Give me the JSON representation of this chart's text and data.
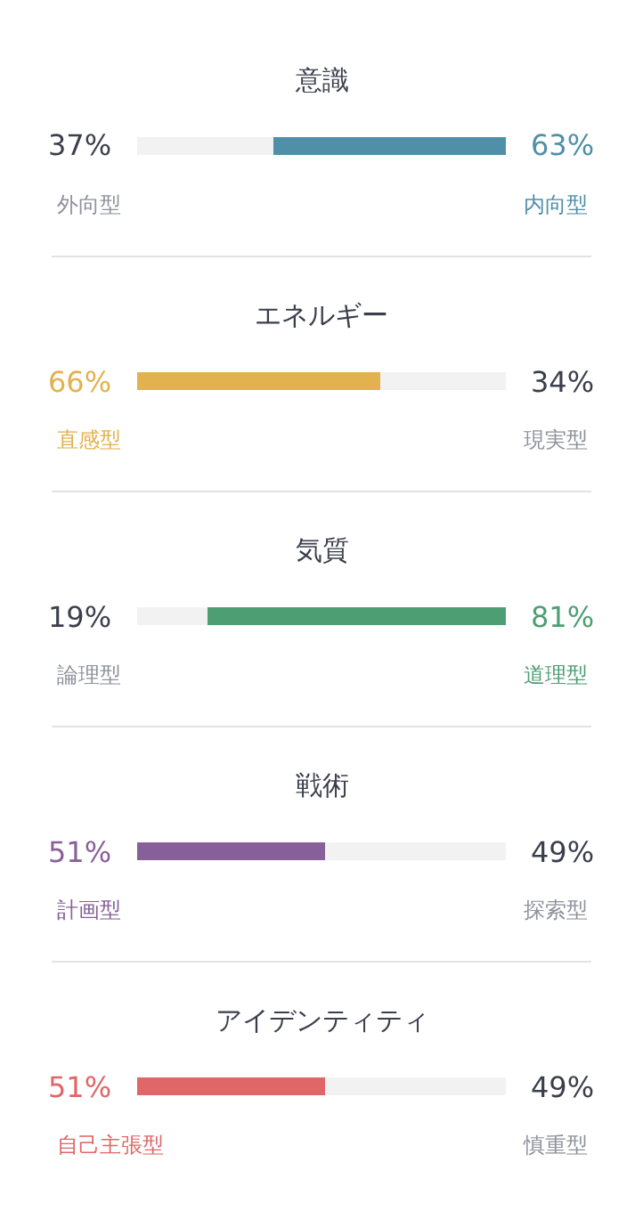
{
  "chart_data": [
    {
      "type": "bar",
      "orientation": "horizontal",
      "stacked": true,
      "title": "意識",
      "categories": [
        null
      ],
      "xlim": [
        0,
        100
      ],
      "tick_labels": false,
      "legend": false,
      "series": [
        {
          "name": "外向型",
          "color": "#f2f2f2",
          "values": [
            37
          ],
          "value_labels": [
            "37%"
          ]
        },
        {
          "name": "内向型",
          "color": "#4f8fa8",
          "values": [
            63
          ],
          "value_labels": [
            "63%"
          ]
        }
      ]
    },
    {
      "type": "bar",
      "orientation": "horizontal",
      "stacked": true,
      "title": "エネルギー",
      "categories": [
        null
      ],
      "xlim": [
        0,
        100
      ],
      "tick_labels": false,
      "legend": false,
      "series": [
        {
          "name": "直感型",
          "color": "#e1b24f",
          "values": [
            66
          ],
          "value_labels": [
            "66%"
          ]
        },
        {
          "name": "現実型",
          "color": "#f2f2f2",
          "values": [
            34
          ],
          "value_labels": [
            "34%"
          ]
        }
      ]
    },
    {
      "type": "bar",
      "orientation": "horizontal",
      "stacked": true,
      "title": "気質",
      "categories": [
        null
      ],
      "xlim": [
        0,
        100
      ],
      "tick_labels": false,
      "legend": false,
      "series": [
        {
          "name": "論理型",
          "color": "#f2f2f2",
          "values": [
            19
          ],
          "value_labels": [
            "19%"
          ]
        },
        {
          "name": "道理型",
          "color": "#4e9e74",
          "values": [
            81
          ],
          "value_labels": [
            "81%"
          ]
        }
      ]
    },
    {
      "type": "bar",
      "orientation": "horizontal",
      "stacked": true,
      "title": "戦術",
      "categories": [
        null
      ],
      "xlim": [
        0,
        100
      ],
      "tick_labels": false,
      "legend": false,
      "series": [
        {
          "name": "計画型",
          "color": "#87609a",
          "values": [
            51
          ],
          "value_labels": [
            "51%"
          ]
        },
        {
          "name": "探索型",
          "color": "#f2f2f2",
          "values": [
            49
          ],
          "value_labels": [
            "49%"
          ]
        }
      ]
    },
    {
      "type": "bar",
      "orientation": "horizontal",
      "stacked": true,
      "title": "アイデンティティ",
      "categories": [
        null
      ],
      "xlim": [
        0,
        100
      ],
      "tick_labels": false,
      "legend": false,
      "series": [
        {
          "name": "自己主張型",
          "color": "#e06667",
          "values": [
            51
          ],
          "value_labels": [
            "51%"
          ]
        },
        {
          "name": "慎重型",
          "color": "#f2f2f2",
          "values": [
            49
          ],
          "value_labels": [
            "49%"
          ]
        }
      ]
    }
  ]
}
